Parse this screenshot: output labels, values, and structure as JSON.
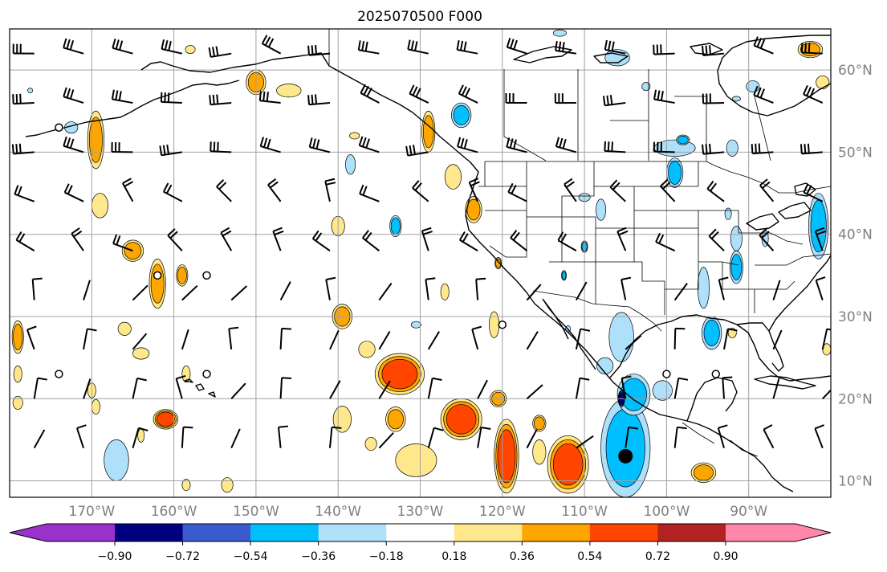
{
  "title": "2025070500 F000",
  "x_ticks": [
    {
      "label": "170°W",
      "lon": -170
    },
    {
      "label": "160°W",
      "lon": -160
    },
    {
      "label": "150°W",
      "lon": -150
    },
    {
      "label": "140°W",
      "lon": -140
    },
    {
      "label": "130°W",
      "lon": -130
    },
    {
      "label": "120°W",
      "lon": -120
    },
    {
      "label": "110°W",
      "lon": -110
    },
    {
      "label": "100°W",
      "lon": -100
    },
    {
      "label": "90°W",
      "lon": -90
    }
  ],
  "y_ticks": [
    {
      "label": "60°N",
      "lat": 60
    },
    {
      "label": "50°N",
      "lat": 50
    },
    {
      "label": "40°N",
      "lat": 40
    },
    {
      "label": "30°N",
      "lat": 30
    },
    {
      "label": "20°N",
      "lat": 20
    },
    {
      "label": "10°N",
      "lat": 10
    }
  ],
  "colorbar": {
    "colors": [
      "#9932cc",
      "#000080",
      "#3a5bcf",
      "#00bfff",
      "#aee0fa",
      "#ffffff",
      "#ffe88c",
      "#ffa500",
      "#ff4500",
      "#b22222",
      "#ff88aa"
    ],
    "tick_labels": [
      "−0.90",
      "−0.72",
      "−0.54",
      "−0.36",
      "−0.18",
      "0.18",
      "0.36",
      "0.54",
      "0.72",
      "0.90"
    ]
  },
  "chart_data": {
    "type": "map",
    "title": "2025070500 F000",
    "lon_range": [
      -180,
      -80
    ],
    "lat_range": [
      8,
      65
    ],
    "grid": true,
    "colorbar_levels": [
      -0.9,
      -0.72,
      -0.54,
      -0.36,
      -0.18,
      0.18,
      0.36,
      0.54,
      0.72,
      0.9
    ],
    "colorbar_extend": "both",
    "blobs": [
      {
        "lon": -169.5,
        "lat": 51.5,
        "rx": 1.0,
        "ry": 3.5,
        "level": 0.36
      },
      {
        "lon": -172.5,
        "lat": 53.0,
        "rx": 0.8,
        "ry": 0.7,
        "level": -0.18
      },
      {
        "lon": -150.0,
        "lat": 58.5,
        "rx": 1.2,
        "ry": 1.5,
        "level": 0.36
      },
      {
        "lon": -146.0,
        "lat": 57.5,
        "rx": 1.5,
        "ry": 0.8,
        "level": 0.18
      },
      {
        "lon": -138.5,
        "lat": 48.5,
        "rx": 0.6,
        "ry": 1.2,
        "level": -0.18
      },
      {
        "lon": -138.0,
        "lat": 52.0,
        "rx": 0.6,
        "ry": 0.4,
        "level": 0.18
      },
      {
        "lon": -169.0,
        "lat": 43.5,
        "rx": 1.0,
        "ry": 1.5,
        "level": 0.18
      },
      {
        "lon": -140.0,
        "lat": 41.0,
        "rx": 0.8,
        "ry": 1.2,
        "level": 0.18
      },
      {
        "lon": -133.0,
        "lat": 41.0,
        "rx": 0.7,
        "ry": 1.3,
        "level": -0.36
      },
      {
        "lon": -129.0,
        "lat": 52.5,
        "rx": 0.8,
        "ry": 2.5,
        "level": 0.36
      },
      {
        "lon": -125.0,
        "lat": 54.5,
        "rx": 1.2,
        "ry": 1.5,
        "level": -0.36
      },
      {
        "lon": -126.0,
        "lat": 47.0,
        "rx": 1.0,
        "ry": 1.5,
        "level": 0.18
      },
      {
        "lon": -123.5,
        "lat": 43.0,
        "rx": 1.0,
        "ry": 1.6,
        "level": 0.36
      },
      {
        "lon": -120.5,
        "lat": 36.5,
        "rx": 0.4,
        "ry": 0.7,
        "level": 0.36
      },
      {
        "lon": -162.0,
        "lat": 34.0,
        "rx": 1.0,
        "ry": 3.0,
        "level": 0.36
      },
      {
        "lon": -165.0,
        "lat": 38.0,
        "rx": 1.3,
        "ry": 1.3,
        "level": 0.36
      },
      {
        "lon": -159.0,
        "lat": 35.0,
        "rx": 0.7,
        "ry": 1.3,
        "level": 0.36
      },
      {
        "lon": -179.0,
        "lat": 27.5,
        "rx": 0.7,
        "ry": 2.0,
        "level": 0.36
      },
      {
        "lon": -179.0,
        "lat": 23.0,
        "rx": 0.5,
        "ry": 1.0,
        "level": 0.18
      },
      {
        "lon": -179.0,
        "lat": 19.5,
        "rx": 0.6,
        "ry": 0.8,
        "level": 0.18
      },
      {
        "lon": -170.0,
        "lat": 21.0,
        "rx": 0.5,
        "ry": 0.9,
        "level": 0.18
      },
      {
        "lon": -166.0,
        "lat": 28.5,
        "rx": 0.8,
        "ry": 0.8,
        "level": 0.18
      },
      {
        "lon": -164.0,
        "lat": 25.5,
        "rx": 1.0,
        "ry": 0.7,
        "level": 0.18
      },
      {
        "lon": -158.5,
        "lat": 23.0,
        "rx": 0.5,
        "ry": 1.0,
        "level": 0.18
      },
      {
        "lon": -139.5,
        "lat": 30.0,
        "rx": 1.2,
        "ry": 1.5,
        "level": 0.36
      },
      {
        "lon": -132.5,
        "lat": 23.0,
        "rx": 3.0,
        "ry": 2.5,
        "level": 0.54
      },
      {
        "lon": -136.5,
        "lat": 26.0,
        "rx": 1.0,
        "ry": 1.0,
        "level": 0.18
      },
      {
        "lon": -130.5,
        "lat": 29.0,
        "rx": 0.6,
        "ry": 0.4,
        "level": -0.18
      },
      {
        "lon": -125.0,
        "lat": 17.5,
        "rx": 2.5,
        "ry": 2.5,
        "level": 0.54
      },
      {
        "lon": -120.5,
        "lat": 20.0,
        "rx": 1.0,
        "ry": 1.0,
        "level": 0.36
      },
      {
        "lon": -121.0,
        "lat": 29.0,
        "rx": 0.6,
        "ry": 1.6,
        "level": 0.18
      },
      {
        "lon": -127.0,
        "lat": 33.0,
        "rx": 0.5,
        "ry": 1.0,
        "level": 0.18
      },
      {
        "lon": -161.0,
        "lat": 17.5,
        "rx": 1.5,
        "ry": 1.2,
        "level": 0.54
      },
      {
        "lon": -169.5,
        "lat": 19.0,
        "rx": 0.5,
        "ry": 0.9,
        "level": 0.18
      },
      {
        "lon": -139.5,
        "lat": 17.5,
        "rx": 1.1,
        "ry": 1.6,
        "level": 0.18
      },
      {
        "lon": -133.0,
        "lat": 17.5,
        "rx": 1.2,
        "ry": 1.5,
        "level": 0.36
      },
      {
        "lon": -136.0,
        "lat": 14.5,
        "rx": 0.7,
        "ry": 0.8,
        "level": 0.18
      },
      {
        "lon": -130.5,
        "lat": 12.5,
        "rx": 2.5,
        "ry": 2.0,
        "level": 0.18
      },
      {
        "lon": -119.5,
        "lat": 13.0,
        "rx": 1.5,
        "ry": 4.5,
        "level": 0.54
      },
      {
        "lon": -115.5,
        "lat": 13.5,
        "rx": 0.8,
        "ry": 1.5,
        "level": 0.18
      },
      {
        "lon": -115.5,
        "lat": 17.0,
        "rx": 0.8,
        "ry": 1.0,
        "level": 0.36
      },
      {
        "lon": -112.0,
        "lat": 12.0,
        "rx": 2.5,
        "ry": 3.5,
        "level": 0.54
      },
      {
        "lon": -158.5,
        "lat": 9.5,
        "rx": 0.5,
        "ry": 0.7,
        "level": 0.18
      },
      {
        "lon": -153.5,
        "lat": 9.5,
        "rx": 0.7,
        "ry": 0.9,
        "level": 0.18
      },
      {
        "lon": -167.0,
        "lat": 12.5,
        "rx": 1.5,
        "ry": 2.5,
        "level": -0.18
      },
      {
        "lon": -164.0,
        "lat": 15.5,
        "rx": 0.4,
        "ry": 0.8,
        "level": 0.18
      },
      {
        "lon": -105.0,
        "lat": 14.0,
        "rx": 3.0,
        "ry": 6.0,
        "level": -0.36
      },
      {
        "lon": -104.0,
        "lat": 20.5,
        "rx": 2.0,
        "ry": 2.5,
        "level": -0.36
      },
      {
        "lon": -105.5,
        "lat": 27.5,
        "rx": 1.5,
        "ry": 3.0,
        "level": -0.18
      },
      {
        "lon": -105.5,
        "lat": 20.0,
        "rx": 0.4,
        "ry": 1.0,
        "level": -0.72
      },
      {
        "lon": -100.5,
        "lat": 21.0,
        "rx": 1.2,
        "ry": 1.2,
        "level": -0.18
      },
      {
        "lon": -107.5,
        "lat": 24.0,
        "rx": 1.0,
        "ry": 1.0,
        "level": -0.18
      },
      {
        "lon": -94.5,
        "lat": 28.0,
        "rx": 1.2,
        "ry": 2.0,
        "level": -0.36
      },
      {
        "lon": -95.5,
        "lat": 33.5,
        "rx": 0.7,
        "ry": 2.5,
        "level": -0.18
      },
      {
        "lon": -91.5,
        "lat": 36.0,
        "rx": 0.8,
        "ry": 2.0,
        "level": -0.36
      },
      {
        "lon": -91.5,
        "lat": 39.5,
        "rx": 0.7,
        "ry": 1.5,
        "level": -0.18
      },
      {
        "lon": -92.5,
        "lat": 42.5,
        "rx": 0.4,
        "ry": 0.7,
        "level": -0.18
      },
      {
        "lon": -81.5,
        "lat": 41.0,
        "rx": 1.2,
        "ry": 4.0,
        "level": -0.36
      },
      {
        "lon": -88.0,
        "lat": 39.5,
        "rx": 0.4,
        "ry": 1.0,
        "level": -0.18
      },
      {
        "lon": -108.0,
        "lat": 43.0,
        "rx": 0.6,
        "ry": 1.3,
        "level": -0.18
      },
      {
        "lon": -110.0,
        "lat": 44.5,
        "rx": 0.7,
        "ry": 0.5,
        "level": -0.18
      },
      {
        "lon": -110.0,
        "lat": 38.5,
        "rx": 0.4,
        "ry": 0.7,
        "level": -0.36
      },
      {
        "lon": -112.5,
        "lat": 35.0,
        "rx": 0.3,
        "ry": 0.6,
        "level": -0.36
      },
      {
        "lon": -99.0,
        "lat": 50.5,
        "rx": 2.5,
        "ry": 1.0,
        "level": -0.18
      },
      {
        "lon": -99.0,
        "lat": 47.5,
        "rx": 1.0,
        "ry": 1.8,
        "level": -0.36
      },
      {
        "lon": -98.0,
        "lat": 51.5,
        "rx": 0.8,
        "ry": 0.6,
        "level": -0.36
      },
      {
        "lon": -92.0,
        "lat": 50.5,
        "rx": 0.7,
        "ry": 1.0,
        "level": -0.18
      },
      {
        "lon": -91.5,
        "lat": 56.5,
        "rx": 0.5,
        "ry": 0.3,
        "level": -0.18
      },
      {
        "lon": -89.5,
        "lat": 58.0,
        "rx": 0.8,
        "ry": 0.7,
        "level": -0.18
      },
      {
        "lon": -106.0,
        "lat": 61.5,
        "rx": 1.5,
        "ry": 1.0,
        "level": -0.18
      },
      {
        "lon": -113.0,
        "lat": 64.5,
        "rx": 0.8,
        "ry": 0.4,
        "level": -0.18
      },
      {
        "lon": -102.5,
        "lat": 58.0,
        "rx": 0.5,
        "ry": 0.5,
        "level": -0.18
      },
      {
        "lon": -82.5,
        "lat": 62.5,
        "rx": 1.5,
        "ry": 1.0,
        "level": 0.36
      },
      {
        "lon": -81.0,
        "lat": 58.5,
        "rx": 0.8,
        "ry": 0.8,
        "level": 0.18
      },
      {
        "lon": -158.0,
        "lat": 62.5,
        "rx": 0.6,
        "ry": 0.5,
        "level": 0.18
      },
      {
        "lon": -177.5,
        "lat": 57.5,
        "rx": 0.3,
        "ry": 0.3,
        "level": -0.18
      },
      {
        "lon": -95.5,
        "lat": 11.0,
        "rx": 1.5,
        "ry": 1.2,
        "level": 0.36
      },
      {
        "lon": -92.0,
        "lat": 28.0,
        "rx": 0.5,
        "ry": 0.6,
        "level": 0.18
      },
      {
        "lon": -80.5,
        "lat": 26.0,
        "rx": 0.5,
        "ry": 0.7,
        "level": 0.18
      },
      {
        "lon": -112.0,
        "lat": 28.5,
        "rx": 0.3,
        "ry": 0.4,
        "level": -0.18
      }
    ],
    "calm_markers": [
      {
        "lon": -174,
        "lat": 53
      },
      {
        "lon": -162,
        "lat": 35
      },
      {
        "lon": -156,
        "lat": 35
      },
      {
        "lon": -174,
        "lat": 23
      },
      {
        "lon": -156,
        "lat": 23
      },
      {
        "lon": -120,
        "lat": 29
      },
      {
        "lon": -100,
        "lat": 23
      },
      {
        "lon": -94,
        "lat": 23
      }
    ],
    "large_dot": {
      "lon": -105,
      "lat": 13
    }
  }
}
